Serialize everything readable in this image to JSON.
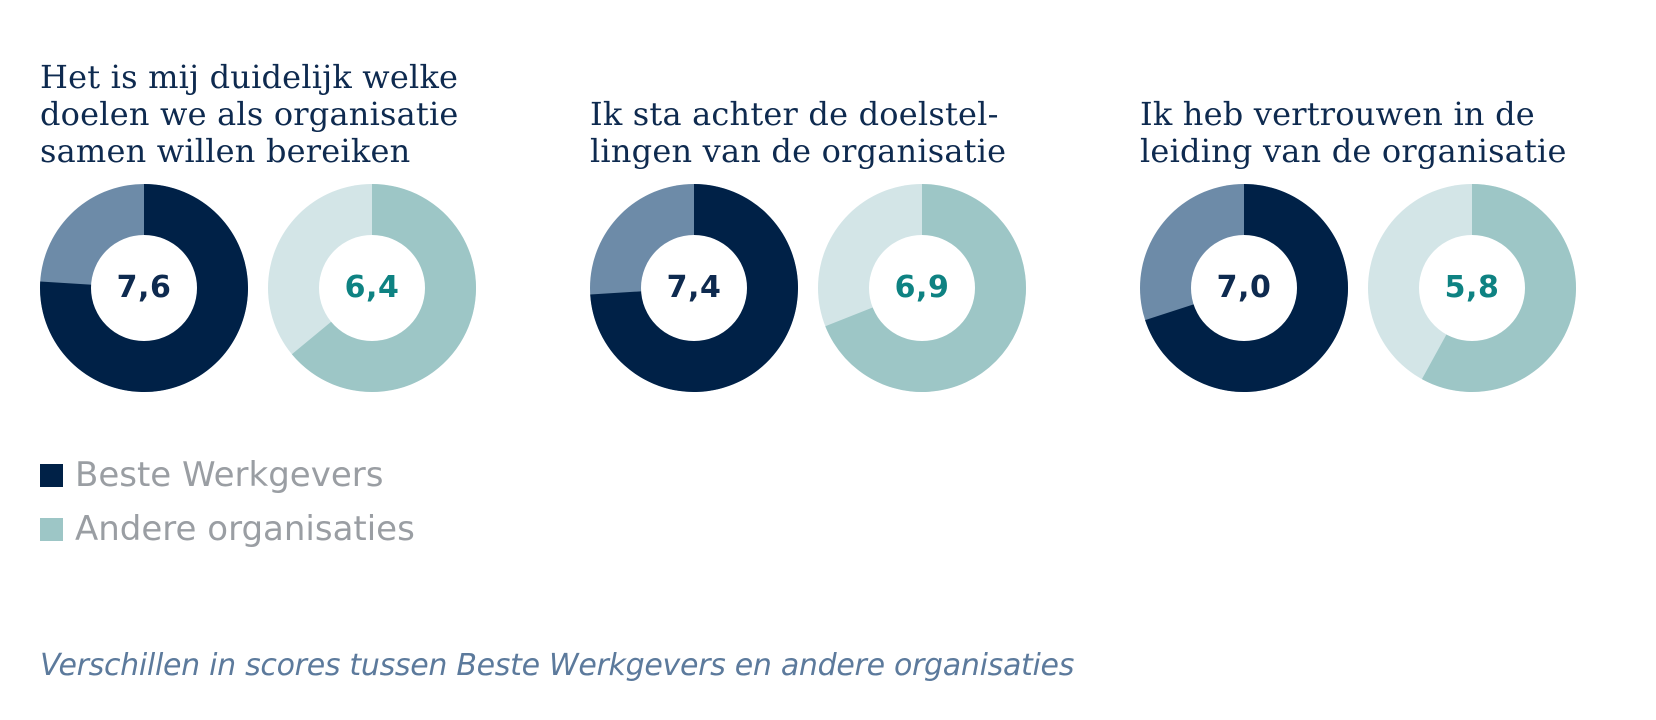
{
  "colors": {
    "title": "#0e2a4f",
    "legend_text": "#9a9ea3",
    "caption": "#5c7a9c",
    "best_fill": "#002147",
    "best_rest": "#6d8ba8",
    "best_value_text": "#0e2a4f",
    "other_fill": "#9dc6c6",
    "other_rest": "#d3e5e7",
    "other_value_text": "#0e8282",
    "hole": "#ffffff"
  },
  "chart_data": {
    "type": "pie",
    "scale_max": 10,
    "groups": [
      {
        "title": "Het is mij duidelijk welke\ndoelen we als organisatie\nsamen willen bereiken",
        "values": [
          {
            "series": "Beste Werkgevers",
            "value": 7.6,
            "label": "7,6"
          },
          {
            "series": "Andere organisaties",
            "value": 6.4,
            "label": "6,4"
          }
        ]
      },
      {
        "title": "Ik sta achter de doelstel-\nlingen van de organisatie",
        "values": [
          {
            "series": "Beste Werkgevers",
            "value": 7.4,
            "label": "7,4"
          },
          {
            "series": "Andere organisaties",
            "value": 6.9,
            "label": "6,9"
          }
        ]
      },
      {
        "title": "Ik heb vertrouwen in de\nleiding van de organisatie",
        "values": [
          {
            "series": "Beste Werkgevers",
            "value": 7.0,
            "label": "7,0"
          },
          {
            "series": "Andere organisaties",
            "value": 5.8,
            "label": "5,8"
          }
        ]
      }
    ],
    "legend": [
      {
        "label": "Beste Werkgevers",
        "color": "#002147"
      },
      {
        "label": "Andere organisaties",
        "color": "#9dc6c6"
      }
    ],
    "legend_position": "bottom-left"
  },
  "caption": "Verschillen in scores tussen Beste Werkgevers en andere organisaties"
}
